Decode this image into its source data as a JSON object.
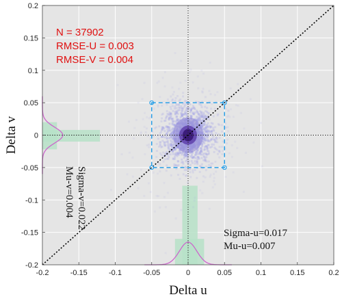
{
  "chart_data": {
    "type": "scatter",
    "xlabel": "Delta u",
    "ylabel": "Delta v",
    "xlim": [
      -0.2,
      0.2
    ],
    "ylim": [
      -0.2,
      0.2
    ],
    "x_ticks": [
      "-0.2",
      "-0.15",
      "-0.1",
      "-0.05",
      "0",
      "0.05",
      "0.1",
      "0.15",
      "0.2"
    ],
    "y_ticks": [
      "-0.2",
      "-0.15",
      "-0.1",
      "-0.05",
      "0",
      "0.05",
      "0.1",
      "0.15",
      "0.2"
    ],
    "grid": true,
    "annotations": {
      "n": "N = 37902",
      "rmse_u": "RMSE-U = 0.003",
      "rmse_v": "RMSE-V = 0.004",
      "sigma_u": "Sigma-u=0.017",
      "mu_u": "Mu-u=0.007",
      "sigma_v": "Sigma-v=0.022",
      "mu_v": "Mu-v=0.004"
    },
    "reference_box": {
      "x": [
        -0.05,
        0.05
      ],
      "y": [
        -0.05,
        0.05
      ]
    },
    "diagonal": {
      "from": [
        -0.2,
        -0.2
      ],
      "to": [
        0.2,
        0.2
      ]
    },
    "distribution": {
      "center": [
        0.0,
        0.0
      ],
      "spread_u": 0.017,
      "spread_v": 0.022,
      "n_points": 37902
    },
    "colors": {
      "background": "#e5e5e5",
      "grid": "#ffffff",
      "points": "#a6a6e6",
      "core": "#3a1a78",
      "box": "#2aa0e8",
      "histogram": "#b7e2c8",
      "density_curve": "#cc66cc",
      "annotation_red": "#e01010",
      "diagonal": "#000000"
    }
  }
}
